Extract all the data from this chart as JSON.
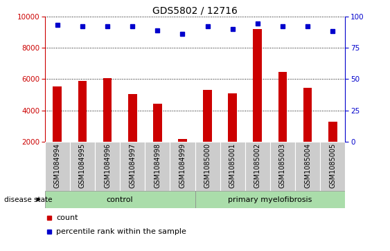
{
  "title": "GDS5802 / 12716",
  "samples": [
    "GSM1084994",
    "GSM1084995",
    "GSM1084996",
    "GSM1084997",
    "GSM1084998",
    "GSM1084999",
    "GSM1085000",
    "GSM1085001",
    "GSM1085002",
    "GSM1085003",
    "GSM1085004",
    "GSM1085005"
  ],
  "counts": [
    5550,
    5900,
    6050,
    5050,
    4450,
    2200,
    5300,
    5100,
    9200,
    6450,
    5450,
    3300
  ],
  "percentile_ranks": [
    93,
    92,
    92,
    92,
    89,
    86,
    92,
    90,
    94,
    92,
    92,
    88
  ],
  "bar_color": "#cc0000",
  "dot_color": "#0000cc",
  "ylim_left": [
    2000,
    10000
  ],
  "ylim_right": [
    0,
    100
  ],
  "yticks_left": [
    2000,
    4000,
    6000,
    8000,
    10000
  ],
  "yticks_right": [
    0,
    25,
    50,
    75,
    100
  ],
  "grid_values": [
    4000,
    6000,
    8000,
    10000
  ],
  "tick_bg_color": "#cccccc",
  "group_color": "#aaddaa",
  "control_count": 6,
  "disease_state_label": "disease state",
  "control_label": "control",
  "pmf_label": "primary myelofibrosis",
  "legend_count_label": "count",
  "legend_pct_label": "percentile rank within the sample",
  "title_fontsize": 10,
  "axis_fontsize": 7.5,
  "label_fontsize": 7,
  "bar_width": 0.35
}
